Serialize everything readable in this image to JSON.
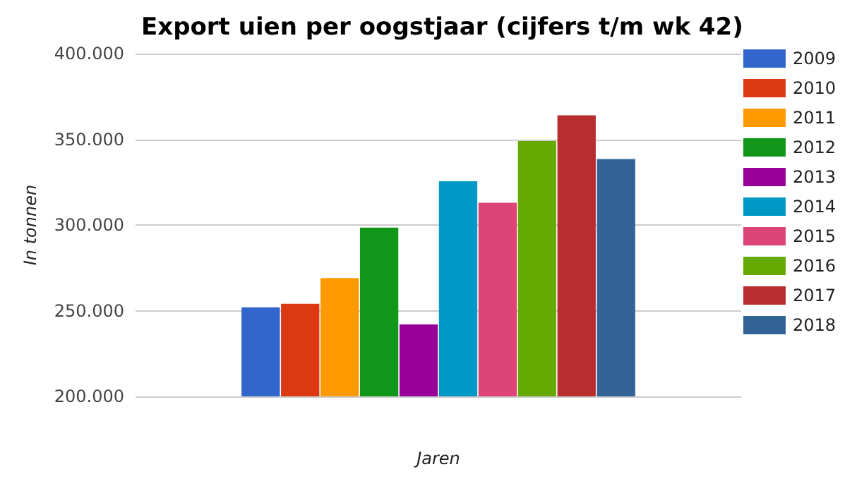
{
  "chart_data": {
    "type": "bar",
    "title": "Export uien per oogstjaar (cijfers t/m wk 42)",
    "xlabel": "Jaren",
    "ylabel": "In tonnen",
    "categories": [
      null
    ],
    "series": [
      {
        "name": "2009",
        "color": "#3366cc",
        "values": [
          252000
        ]
      },
      {
        "name": "2010",
        "color": "#dc3912",
        "values": [
          254000
        ]
      },
      {
        "name": "2011",
        "color": "#ff9900",
        "values": [
          269000
        ]
      },
      {
        "name": "2012",
        "color": "#109618",
        "values": [
          298500
        ]
      },
      {
        "name": "2013",
        "color": "#990099",
        "values": [
          242000
        ]
      },
      {
        "name": "2014",
        "color": "#0099c6",
        "values": [
          325500
        ]
      },
      {
        "name": "2015",
        "color": "#dd4477",
        "values": [
          313000
        ]
      },
      {
        "name": "2016",
        "color": "#66aa00",
        "values": [
          349000
        ]
      },
      {
        "name": "2017",
        "color": "#b82e2e",
        "values": [
          364000
        ]
      },
      {
        "name": "2018",
        "color": "#316395",
        "values": [
          338500
        ]
      }
    ],
    "ylim": [
      200000,
      400000
    ],
    "yticks": [
      {
        "value": 200000,
        "label": "200.000"
      },
      {
        "value": 250000,
        "label": "250.000"
      },
      {
        "value": 300000,
        "label": "300.000"
      },
      {
        "value": 350000,
        "label": "350.000"
      },
      {
        "value": 400000,
        "label": "400.000"
      }
    ],
    "grid": "y",
    "legend": "right"
  }
}
